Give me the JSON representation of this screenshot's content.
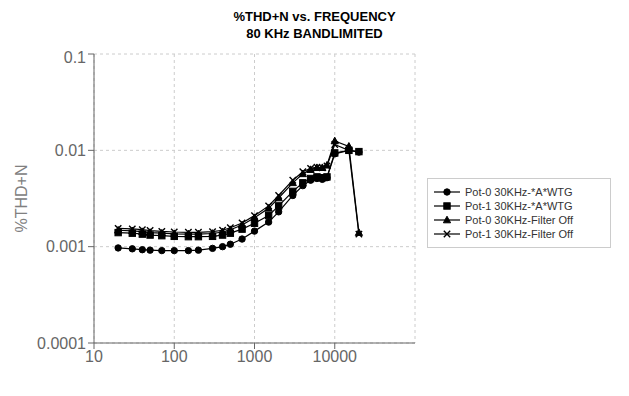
{
  "chart_data": {
    "type": "line",
    "title": "%THD+N vs. FREQUENCY",
    "subtitle": "80 KHz BANDLIMITED",
    "y_label": "%THD+N",
    "log": true,
    "grid": true,
    "legend": "right",
    "xlim": [
      10,
      100000
    ],
    "ylim": [
      0.0001,
      0.1
    ],
    "xticks": [
      10,
      100,
      1000,
      10000
    ],
    "yticks": [
      0.0001,
      0.001,
      0.01,
      0.1
    ],
    "x": [
      20,
      30,
      40,
      50,
      70,
      100,
      150,
      200,
      300,
      400,
      500,
      700,
      1000,
      1500,
      2000,
      3000,
      4000,
      5000,
      6000,
      7000,
      8000,
      10000,
      15000,
      20000
    ],
    "series": [
      {
        "name": "Pot-0 30KHz-*A*WTG",
        "color": "#000000",
        "marker": "circle",
        "line_style": "solid",
        "values": [
          0.00097,
          0.00095,
          0.00093,
          0.00092,
          0.00091,
          0.00091,
          0.00091,
          0.00092,
          0.00096,
          0.001,
          0.00106,
          0.0012,
          0.00145,
          0.0018,
          0.0023,
          0.0034,
          0.0043,
          0.0049,
          0.0051,
          0.005,
          0.0052,
          0.0092,
          0.01,
          0.0096
        ]
      },
      {
        "name": "Pot-1 30KHz-*A*WTG",
        "color": "#000000",
        "marker": "square",
        "line_style": "solid",
        "values": [
          0.0014,
          0.00138,
          0.00135,
          0.00132,
          0.0013,
          0.00128,
          0.00127,
          0.00127,
          0.00128,
          0.00132,
          0.00138,
          0.00152,
          0.00175,
          0.0021,
          0.00265,
          0.00375,
          0.0046,
          0.0051,
          0.0053,
          0.0052,
          0.0053,
          0.0094,
          0.01,
          0.0097
        ]
      },
      {
        "name": "Pot-0 30KHz-Filter Off",
        "color": "#000000",
        "marker": "triangle",
        "line_style": "solid",
        "values": [
          0.00148,
          0.00146,
          0.00143,
          0.0014,
          0.00138,
          0.00136,
          0.00135,
          0.00135,
          0.00137,
          0.00142,
          0.0015,
          0.00168,
          0.002,
          0.0025,
          0.0032,
          0.0046,
          0.0057,
          0.0063,
          0.0066,
          0.0066,
          0.007,
          0.0125,
          0.011,
          0.0014
        ]
      },
      {
        "name": "Pot-1 30KHz-Filter Off",
        "color": "#000000",
        "marker": "x",
        "line_style": "solid",
        "values": [
          0.00155,
          0.00153,
          0.0015,
          0.00147,
          0.00144,
          0.00142,
          0.00141,
          0.00141,
          0.00143,
          0.00148,
          0.00157,
          0.00176,
          0.0021,
          0.00265,
          0.0034,
          0.0049,
          0.006,
          0.0065,
          0.0067,
          0.0066,
          0.0069,
          0.0115,
          0.01,
          0.00135
        ]
      }
    ]
  }
}
